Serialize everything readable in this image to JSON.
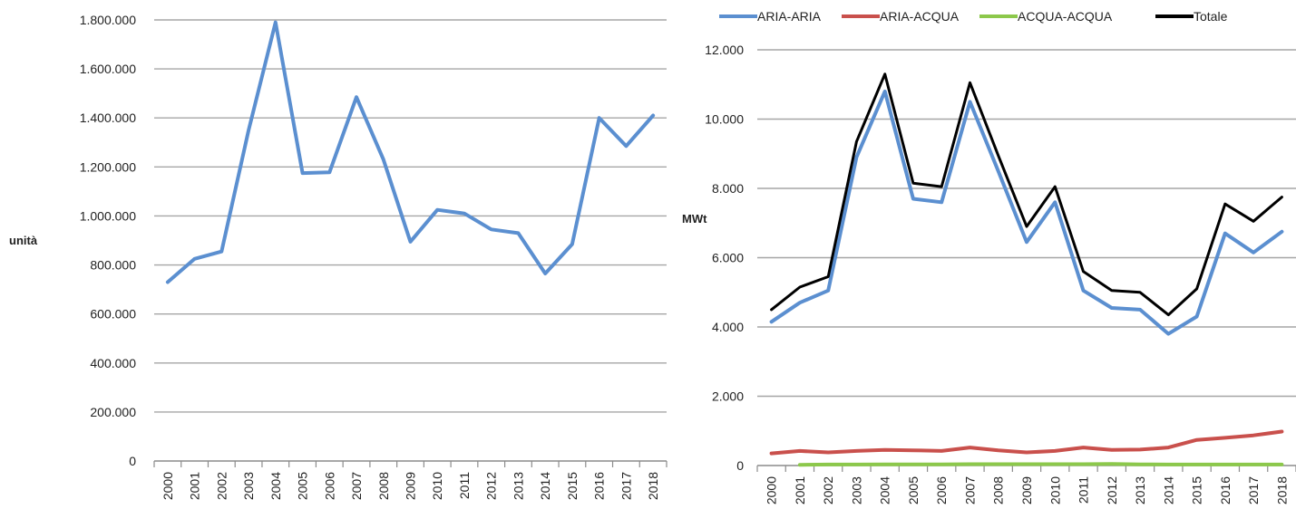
{
  "chart_data": [
    {
      "type": "line",
      "title": "",
      "xlabel": "",
      "ylabel": "unità",
      "ylim": [
        0,
        1800000
      ],
      "y_ticks": [
        "0",
        "200.000",
        "400.000",
        "600.000",
        "800.000",
        "1.000.000",
        "1.200.000",
        "1.400.000",
        "1.600.000",
        "1.800.000"
      ],
      "categories": [
        "2000",
        "2001",
        "2002",
        "2003",
        "2004",
        "2005",
        "2006",
        "2007",
        "2008",
        "2009",
        "2010",
        "2011",
        "2012",
        "2013",
        "2014",
        "2015",
        "2016",
        "2017",
        "2018"
      ],
      "grid": true,
      "series": [
        {
          "color": "#5b8fd0",
          "values": [
            730000,
            825000,
            855000,
            1350000,
            1790000,
            1175000,
            1178000,
            1485000,
            1230000,
            895000,
            1025000,
            1010000,
            945000,
            930000,
            765000,
            885000,
            1400000,
            1285000,
            1410000
          ]
        }
      ]
    },
    {
      "type": "line",
      "title": "",
      "xlabel": "",
      "ylabel": "MWt",
      "ylim": [
        0,
        12000
      ],
      "y_ticks": [
        "0",
        "2.000",
        "4.000",
        "6.000",
        "8.000",
        "10.000",
        "12.000"
      ],
      "categories": [
        "2000",
        "2001",
        "2002",
        "2003",
        "2004",
        "2005",
        "2006",
        "2007",
        "2008",
        "2009",
        "2010",
        "2011",
        "2012",
        "2013",
        "2014",
        "2015",
        "2016",
        "2017",
        "2018"
      ],
      "grid": true,
      "legend": "top",
      "series": [
        {
          "name": "ARIA-ARIA",
          "color": "#5b8fd0",
          "values": [
            4150,
            4700,
            5050,
            8900,
            10800,
            7700,
            7600,
            10500,
            8500,
            6450,
            7600,
            5050,
            4550,
            4500,
            3800,
            4300,
            6700,
            6150,
            6750
          ]
        },
        {
          "name": "ARIA-ACQUA",
          "color": "#c9504c",
          "values": [
            350,
            420,
            380,
            420,
            450,
            440,
            420,
            520,
            440,
            380,
            420,
            520,
            450,
            460,
            520,
            740,
            800,
            870,
            980
          ]
        },
        {
          "name": "ACQUA-ACQUA",
          "color": "#8cc84b",
          "values": [
            null,
            20,
            30,
            30,
            35,
            35,
            35,
            40,
            40,
            40,
            40,
            40,
            45,
            35,
            30,
            30,
            30,
            30,
            30
          ]
        },
        {
          "name": "Totale",
          "color": "#000000",
          "values": [
            4500,
            5150,
            5450,
            9350,
            11300,
            8150,
            8050,
            11050,
            8950,
            6900,
            8050,
            5600,
            5050,
            5000,
            4350,
            5100,
            7550,
            7050,
            7750
          ]
        }
      ]
    }
  ]
}
